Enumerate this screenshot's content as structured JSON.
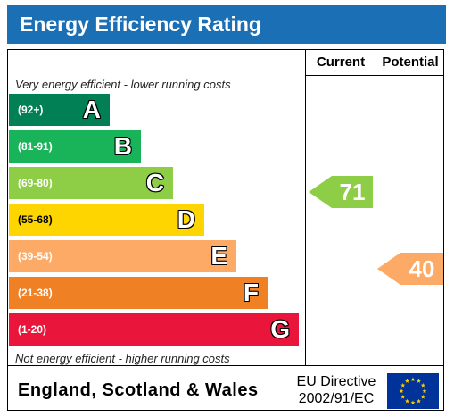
{
  "title": "Energy Efficiency Rating",
  "columns": {
    "current": "Current",
    "potential": "Potential"
  },
  "top_note": "Very energy efficient - lower running costs",
  "bottom_note": "Not energy efficient - higher running costs",
  "bands": [
    {
      "range": "(92+)",
      "letter": "A",
      "color": "#008054"
    },
    {
      "range": "(81-91)",
      "letter": "B",
      "color": "#19b459"
    },
    {
      "range": "(69-80)",
      "letter": "C",
      "color": "#8dce46"
    },
    {
      "range": "(55-68)",
      "letter": "D",
      "color": "#ffd500"
    },
    {
      "range": "(39-54)",
      "letter": "E",
      "color": "#fcaa65"
    },
    {
      "range": "(21-38)",
      "letter": "F",
      "color": "#ef8023"
    },
    {
      "range": "(1-20)",
      "letter": "G",
      "color": "#e9153b"
    }
  ],
  "current": {
    "value": "71",
    "band": "C",
    "color": "#8dce46"
  },
  "potential": {
    "value": "40",
    "band": "E",
    "color": "#fcaa65"
  },
  "footer": {
    "region": "England, Scotland & Wales",
    "directive_line1": "EU Directive",
    "directive_line2": "2002/91/EC",
    "flag_color": "#003399",
    "star_color": "#ffcc00"
  }
}
